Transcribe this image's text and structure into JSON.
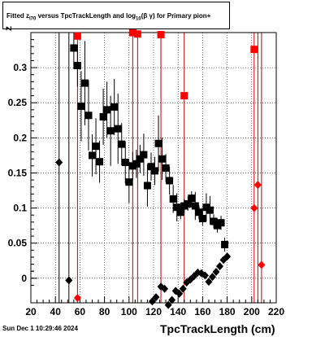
{
  "title": {
    "p1": "Fitted  z",
    "sub1": "I70",
    "p2": "  versus TpcTrackLength and log",
    "sub2": "10",
    "p3": "(β  γ) for Primary pion+"
  },
  "footer": {
    "date": "Sun Dec  1 10:29:46 2024"
  },
  "chart_data": {
    "type": "scatter",
    "xlabel": "TpcTrackLength (cm)",
    "ylabel": "z",
    "xlim": [
      20,
      220
    ],
    "ylim": [
      -0.035,
      0.35
    ],
    "xticks": [
      20,
      40,
      60,
      80,
      100,
      120,
      140,
      160,
      180,
      200,
      220
    ],
    "yticks": [
      0,
      0.05,
      0.1,
      0.15,
      0.2,
      0.25,
      0.3
    ],
    "grid": true,
    "colors": {
      "black": "#000000",
      "red": "#ff0000",
      "line": "#c00000"
    },
    "series": [
      {
        "marker": "square",
        "color": "#000000",
        "points": [
          {
            "x": 55,
            "y": 0.328,
            "e": 0.03
          },
          {
            "x": 58,
            "y": 0.303,
            "e": 0.03
          },
          {
            "x": 61,
            "y": 0.245,
            "e": 0.05
          },
          {
            "x": 64,
            "y": 0.278,
            "e": 0.06
          },
          {
            "x": 67,
            "y": 0.232,
            "e": 0.05
          },
          {
            "x": 70,
            "y": 0.175,
            "e": 0.03
          },
          {
            "x": 73,
            "y": 0.188,
            "e": 0.04
          },
          {
            "x": 76,
            "y": 0.166,
            "e": 0.03
          },
          {
            "x": 79,
            "y": 0.23,
            "e": 0.04
          },
          {
            "x": 82,
            "y": 0.24,
            "e": 0.04
          },
          {
            "x": 85,
            "y": 0.21,
            "e": 0.05
          },
          {
            "x": 88,
            "y": 0.244,
            "e": 0.04
          },
          {
            "x": 91,
            "y": 0.213,
            "e": 0.05
          },
          {
            "x": 94,
            "y": 0.191,
            "e": 0.03
          },
          {
            "x": 97,
            "y": 0.165,
            "e": 0.03
          },
          {
            "x": 100,
            "y": 0.137,
            "e": 0.03
          },
          {
            "x": 103,
            "y": 0.16,
            "e": 0.02
          },
          {
            "x": 106,
            "y": 0.163,
            "e": 0.02
          },
          {
            "x": 109,
            "y": 0.17,
            "e": 0.02
          },
          {
            "x": 112,
            "y": 0.176,
            "e": 0.03
          },
          {
            "x": 115,
            "y": 0.132,
            "e": 0.03
          },
          {
            "x": 118,
            "y": 0.159,
            "e": 0.02
          },
          {
            "x": 121,
            "y": 0.153,
            "e": 0.02
          },
          {
            "x": 124,
            "y": 0.192,
            "e": 0.04
          },
          {
            "x": 127,
            "y": 0.17,
            "e": 0.03
          },
          {
            "x": 130,
            "y": 0.157,
            "e": 0.02
          },
          {
            "x": 133,
            "y": 0.139,
            "e": 0.02
          },
          {
            "x": 136,
            "y": 0.113,
            "e": 0.02
          },
          {
            "x": 139,
            "y": 0.101,
            "e": 0.02
          },
          {
            "x": 142,
            "y": 0.094,
            "e": 0.01
          },
          {
            "x": 145,
            "y": 0.103,
            "e": 0.01
          },
          {
            "x": 148,
            "y": 0.106,
            "e": 0.01
          },
          {
            "x": 151,
            "y": 0.114,
            "e": 0.01
          },
          {
            "x": 154,
            "y": 0.103,
            "e": 0.02
          },
          {
            "x": 157,
            "y": 0.094,
            "e": 0.01
          },
          {
            "x": 160,
            "y": 0.085,
            "e": 0.01
          },
          {
            "x": 163,
            "y": 0.101,
            "e": 0.02
          },
          {
            "x": 166,
            "y": 0.097,
            "e": 0.02
          },
          {
            "x": 169,
            "y": 0.081,
            "e": 0.01
          },
          {
            "x": 172,
            "y": 0.075,
            "e": 0.01
          },
          {
            "x": 175,
            "y": 0.079,
            "e": 0.01
          },
          {
            "x": 178,
            "y": 0.048,
            "e": 0.01
          }
        ]
      },
      {
        "marker": "diamond",
        "color": "#000000",
        "points": [
          {
            "x": 43,
            "y": 0.165
          },
          {
            "x": 51,
            "y": -0.003
          },
          {
            "x": 119,
            "y": -0.033
          },
          {
            "x": 122,
            "y": -0.027
          },
          {
            "x": 126,
            "y": -0.012
          },
          {
            "x": 129,
            "y": -0.015
          },
          {
            "x": 132,
            "y": -0.038
          },
          {
            "x": 135,
            "y": -0.031
          },
          {
            "x": 138,
            "y": -0.018
          },
          {
            "x": 141,
            "y": -0.022
          },
          {
            "x": 144,
            "y": -0.015
          },
          {
            "x": 147,
            "y": -0.006
          },
          {
            "x": 150,
            "y": -0.002
          },
          {
            "x": 153,
            "y": 0.003
          },
          {
            "x": 156,
            "y": 0.008
          },
          {
            "x": 159,
            "y": 0.007
          },
          {
            "x": 162,
            "y": 0.004
          },
          {
            "x": 165,
            "y": -0.005
          },
          {
            "x": 168,
            "y": 0.002
          },
          {
            "x": 171,
            "y": 0.009
          },
          {
            "x": 174,
            "y": 0.017
          },
          {
            "x": 177,
            "y": 0.026
          },
          {
            "x": 180,
            "y": 0.031
          }
        ]
      },
      {
        "marker": "square",
        "color": "#ff0000",
        "points": [
          {
            "x": 58,
            "y": 0.345
          },
          {
            "x": 103,
            "y": 0.35
          },
          {
            "x": 107,
            "y": 0.348
          },
          {
            "x": 126,
            "y": 0.347
          },
          {
            "x": 145,
            "y": 0.26
          },
          {
            "x": 202,
            "y": 0.326
          }
        ]
      },
      {
        "marker": "diamond",
        "color": "#ff0000",
        "points": [
          {
            "x": 58,
            "y": -0.028
          },
          {
            "x": 202,
            "y": 0.1
          },
          {
            "x": 205,
            "y": 0.133
          },
          {
            "x": 208,
            "y": 0.019
          }
        ]
      }
    ],
    "vlines": [
      43,
      51,
      58,
      103,
      107,
      126,
      145,
      202,
      205,
      208
    ]
  }
}
